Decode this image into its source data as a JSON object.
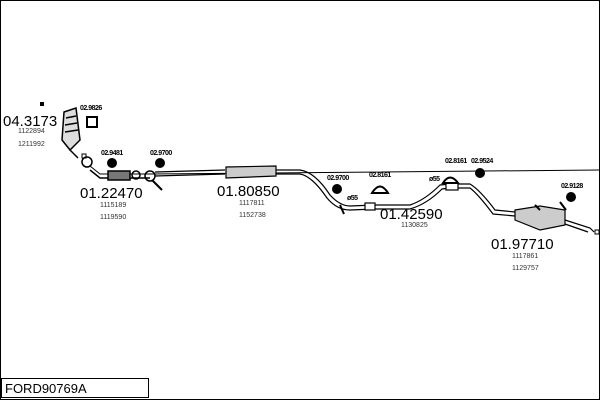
{
  "title": "FORD90769A",
  "parts": [
    {
      "number": "04.3173",
      "refs": [
        "1122894",
        "1211992"
      ]
    },
    {
      "number": "01.22470",
      "refs": [
        "1115189",
        "1119590"
      ]
    },
    {
      "number": "01.80850",
      "refs": [
        "1117811",
        "1152738"
      ]
    },
    {
      "number": "01.42590",
      "refs": [
        "1130825"
      ]
    },
    {
      "number": "01.97710",
      "refs": [
        "1117861",
        "1129757"
      ]
    }
  ],
  "accessories": [
    "02.9826",
    "02.9481",
    "02.9700",
    "02.9700",
    "02.8161",
    "02.8161",
    "02.9524",
    "02.9128"
  ],
  "diameters": [
    "ø55",
    "ø55"
  ]
}
